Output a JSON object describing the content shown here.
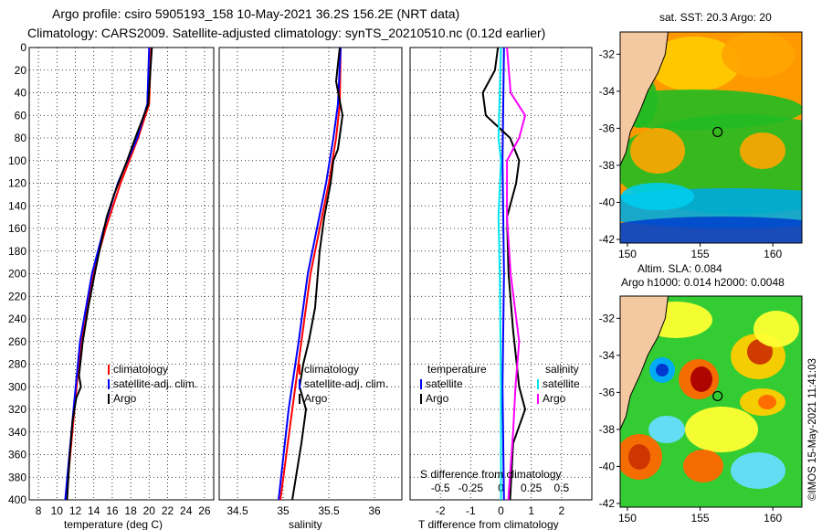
{
  "titles": {
    "line1": "Argo profile: csiro 5905193_158 10-May-2021 36.2S 156.2E (NRT data)",
    "line2": "Climatology: CARS2009. Satellite-adjusted climatology: synTS_20210510.nc (0.12d earlier)",
    "sst_title": "sat. SST: 20.3 Argo: 20",
    "sla_title1": "Altim. SLA: 0.084",
    "sla_title2": "Argo h1000: 0.014 h2000: 0.0048",
    "credit": "©IMOS 15-May-2021 11:41:03"
  },
  "colors": {
    "climatology": "#ff0000",
    "satellite": "#0000ff",
    "argo": "#000000",
    "sat_salinity": "#00e5ee",
    "clim_salinity": "#ff00ff",
    "land": "#f4c8a0"
  },
  "chart_data": [
    {
      "type": "line",
      "name": "temperature",
      "xlabel": "temperature (deg C)",
      "ylabel": "",
      "xlim": [
        7,
        27
      ],
      "ylim": [
        400,
        0
      ],
      "x_ticks": [
        "8",
        "10",
        "12",
        "14",
        "16",
        "18",
        "20",
        "22",
        "24",
        "26"
      ],
      "y_ticks": [
        "0",
        "20",
        "40",
        "60",
        "80",
        "100",
        "120",
        "140",
        "160",
        "180",
        "200",
        "220",
        "240",
        "260",
        "280",
        "300",
        "320",
        "340",
        "360",
        "380",
        "400"
      ],
      "grid": true,
      "legend": [
        "climatology",
        "satellite-adj. clim.",
        "Argo"
      ],
      "series": [
        {
          "name": "climatology",
          "depth": [
            0,
            50,
            80,
            120,
            160,
            200,
            260,
            320,
            400
          ],
          "values": [
            20.2,
            20.0,
            18.8,
            16.9,
            15.3,
            13.9,
            12.6,
            11.9,
            11.0
          ]
        },
        {
          "name": "satellite-adj. clim.",
          "depth": [
            0,
            50,
            80,
            120,
            160,
            200,
            260,
            320,
            400
          ],
          "values": [
            20.0,
            19.8,
            18.7,
            16.6,
            15.1,
            13.8,
            12.5,
            11.8,
            10.9
          ]
        },
        {
          "name": "Argo",
          "depth": [
            0,
            50,
            80,
            100,
            130,
            150,
            180,
            200,
            230,
            260,
            290,
            300,
            310,
            330,
            360,
            400
          ],
          "values": [
            20.3,
            19.9,
            18.5,
            17.6,
            16.2,
            15.4,
            14.6,
            14.1,
            13.4,
            12.8,
            12.4,
            12.6,
            12.1,
            11.7,
            11.4,
            11.1
          ]
        }
      ]
    },
    {
      "type": "line",
      "name": "salinity",
      "xlabel": "salinity",
      "ylabel": "",
      "xlim": [
        34.3,
        36.3
      ],
      "ylim": [
        400,
        0
      ],
      "x_ticks": [
        "34.5",
        "35",
        "35.5",
        "36"
      ],
      "grid": true,
      "legend": [
        "climatology",
        "satellite-adj. clim.",
        "Argo"
      ],
      "series": [
        {
          "name": "climatology",
          "depth": [
            0,
            50,
            80,
            120,
            160,
            200,
            260,
            320,
            400
          ],
          "values": [
            35.63,
            35.62,
            35.58,
            35.5,
            35.4,
            35.3,
            35.2,
            35.1,
            34.97
          ]
        },
        {
          "name": "satellite-adj. clim.",
          "depth": [
            0,
            50,
            80,
            120,
            160,
            200,
            260,
            320,
            400
          ],
          "values": [
            35.63,
            35.6,
            35.55,
            35.47,
            35.37,
            35.27,
            35.17,
            35.06,
            34.95
          ]
        },
        {
          "name": "Argo",
          "depth": [
            0,
            30,
            60,
            90,
            100,
            120,
            150,
            180,
            200,
            230,
            260,
            280,
            300,
            320,
            350,
            400
          ],
          "values": [
            35.62,
            35.58,
            35.65,
            35.6,
            35.55,
            35.52,
            35.45,
            35.4,
            35.38,
            35.35,
            35.28,
            35.22,
            35.18,
            35.25,
            35.2,
            35.1
          ]
        }
      ]
    },
    {
      "type": "line",
      "name": "differences",
      "xlabel": "T difference from climatology",
      "xlabel_top": "S difference from climatology",
      "xlim": [
        -3,
        3
      ],
      "ylim": [
        400,
        0
      ],
      "x_ticks": [
        "-2",
        "-1",
        "0",
        "1",
        "2"
      ],
      "x_ticks_top": [
        "-0.5",
        "-0.25",
        "0",
        "0.25",
        "0.5"
      ],
      "grid": true,
      "legend_titles": [
        "temperature",
        "salinity"
      ],
      "legend_left": [
        "satellite",
        "Argo"
      ],
      "legend_right": [
        "satellite",
        "Argo"
      ],
      "series": [
        {
          "name": "T satellite",
          "depth": [
            0,
            100,
            200,
            300,
            400
          ],
          "values": [
            0.1,
            0.05,
            0.1,
            0.05,
            0.1
          ]
        },
        {
          "name": "T Argo",
          "depth": [
            0,
            20,
            40,
            60,
            80,
            100,
            120,
            150,
            200,
            250,
            300,
            320,
            350,
            400
          ],
          "values": [
            -0.1,
            -0.2,
            -0.6,
            -0.5,
            0.3,
            0.6,
            0.5,
            0.2,
            0.25,
            0.4,
            0.6,
            0.8,
            0.4,
            0.3
          ]
        },
        {
          "name": "S satellite",
          "depth": [
            0,
            80,
            100,
            150,
            200,
            300,
            400
          ],
          "values": [
            0.0,
            -0.02,
            0.0,
            -0.02,
            -0.01,
            0.0,
            0.0
          ]
        },
        {
          "name": "S Argo",
          "depth": [
            0,
            40,
            60,
            80,
            100,
            150,
            200,
            260,
            300,
            340,
            400
          ],
          "values": [
            0.05,
            0.08,
            0.2,
            0.15,
            0.05,
            0.05,
            0.08,
            0.15,
            0.12,
            0.1,
            0.06
          ]
        }
      ]
    },
    {
      "type": "heatmap",
      "name": "sst_map",
      "title": "sat. SST: 20.3 Argo: 20",
      "xlim": [
        149.5,
        162
      ],
      "ylim": [
        -42.2,
        -30.8
      ],
      "x_ticks": [
        "150",
        "155",
        "160"
      ],
      "y_ticks": [
        "-32",
        "-34",
        "-36",
        "-38",
        "-40",
        "-42"
      ],
      "marker": {
        "lon": 156.2,
        "lat": -36.2
      }
    },
    {
      "type": "heatmap",
      "name": "sla_map",
      "title": "Altim. SLA: 0.084",
      "xlim": [
        149.5,
        162
      ],
      "ylim": [
        -42.2,
        -30.8
      ],
      "x_ticks": [
        "150",
        "155",
        "160"
      ],
      "y_ticks": [
        "-32",
        "-34",
        "-36",
        "-38",
        "-40",
        "-42"
      ],
      "marker": {
        "lon": 156.2,
        "lat": -36.2
      }
    }
  ]
}
